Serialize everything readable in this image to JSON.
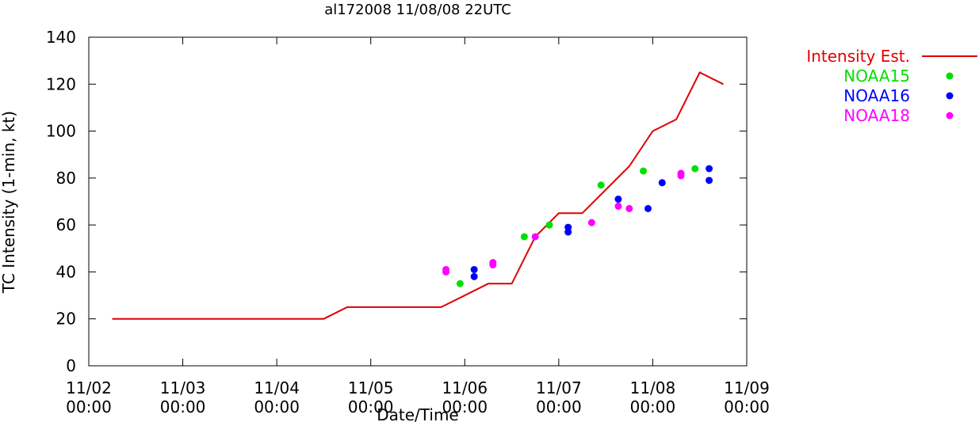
{
  "chart_data": {
    "type": "line",
    "title": "al172008 11/08/08 22UTC",
    "xlabel": "Date/Time",
    "ylabel": "TC Intensity (1-min, kt)",
    "ylim": [
      0,
      140
    ],
    "yticks": [
      0,
      20,
      40,
      60,
      80,
      100,
      120,
      140
    ],
    "xlim": [
      "2008-11-02 00:00",
      "2008-11-09 00:00"
    ],
    "xticks": [
      {
        "value": "2008-11-02 00:00",
        "label_date": "11/02",
        "label_time": "00:00"
      },
      {
        "value": "2008-11-03 00:00",
        "label_date": "11/03",
        "label_time": "00:00"
      },
      {
        "value": "2008-11-04 00:00",
        "label_date": "11/04",
        "label_time": "00:00"
      },
      {
        "value": "2008-11-05 00:00",
        "label_date": "11/05",
        "label_time": "00:00"
      },
      {
        "value": "2008-11-06 00:00",
        "label_date": "11/06",
        "label_time": "00:00"
      },
      {
        "value": "2008-11-07 00:00",
        "label_date": "11/07",
        "label_time": "00:00"
      },
      {
        "value": "2008-11-08 00:00",
        "label_date": "11/08",
        "label_time": "00:00"
      },
      {
        "value": "2008-11-09 00:00",
        "label_date": "11/09",
        "label_time": "00:00"
      }
    ],
    "legend_position": "outside-top-right",
    "grid": false,
    "series": [
      {
        "name": "Intensity Est.",
        "kind": "line",
        "color": "#e00000",
        "points": [
          {
            "x": "2008-11-02 06:00",
            "y": 20
          },
          {
            "x": "2008-11-04 12:00",
            "y": 20
          },
          {
            "x": "2008-11-04 18:00",
            "y": 25
          },
          {
            "x": "2008-11-05 18:00",
            "y": 25
          },
          {
            "x": "2008-11-06 06:00",
            "y": 35
          },
          {
            "x": "2008-11-06 12:00",
            "y": 35
          },
          {
            "x": "2008-11-06 18:00",
            "y": 55
          },
          {
            "x": "2008-11-07 00:00",
            "y": 65
          },
          {
            "x": "2008-11-07 06:00",
            "y": 65
          },
          {
            "x": "2008-11-07 18:00",
            "y": 85
          },
          {
            "x": "2008-11-08 00:00",
            "y": 100
          },
          {
            "x": "2008-11-08 06:00",
            "y": 105
          },
          {
            "x": "2008-11-08 12:00",
            "y": 125
          },
          {
            "x": "2008-11-08 18:00",
            "y": 120
          }
        ]
      },
      {
        "name": "NOAA15",
        "kind": "scatter",
        "color": "#00e000",
        "points": [
          {
            "x": "2008-11-05 22:48",
            "y": 35
          },
          {
            "x": "2008-11-06 15:12",
            "y": 55
          },
          {
            "x": "2008-11-06 21:36",
            "y": 60
          },
          {
            "x": "2008-11-07 10:48",
            "y": 77
          },
          {
            "x": "2008-11-07 21:36",
            "y": 83
          },
          {
            "x": "2008-11-08 10:48",
            "y": 84
          }
        ]
      },
      {
        "name": "NOAA16",
        "kind": "scatter",
        "color": "#0000ff",
        "points": [
          {
            "x": "2008-11-06 02:24",
            "y": 41
          },
          {
            "x": "2008-11-06 02:24",
            "y": 38
          },
          {
            "x": "2008-11-07 02:24",
            "y": 59
          },
          {
            "x": "2008-11-07 02:24",
            "y": 57
          },
          {
            "x": "2008-11-07 15:12",
            "y": 71
          },
          {
            "x": "2008-11-07 22:48",
            "y": 67
          },
          {
            "x": "2008-11-08 02:24",
            "y": 78
          },
          {
            "x": "2008-11-08 14:24",
            "y": 84
          },
          {
            "x": "2008-11-08 14:24",
            "y": 79
          }
        ]
      },
      {
        "name": "NOAA18",
        "kind": "scatter",
        "color": "#ff00ff",
        "points": [
          {
            "x": "2008-11-05 19:12",
            "y": 41
          },
          {
            "x": "2008-11-05 19:12",
            "y": 40
          },
          {
            "x": "2008-11-06 07:12",
            "y": 44
          },
          {
            "x": "2008-11-06 07:12",
            "y": 43
          },
          {
            "x": "2008-11-06 18:00",
            "y": 55
          },
          {
            "x": "2008-11-07 08:24",
            "y": 61
          },
          {
            "x": "2008-11-07 15:12",
            "y": 68
          },
          {
            "x": "2008-11-07 18:00",
            "y": 67
          },
          {
            "x": "2008-11-08 07:12",
            "y": 82
          },
          {
            "x": "2008-11-08 07:12",
            "y": 81
          }
        ]
      }
    ]
  }
}
